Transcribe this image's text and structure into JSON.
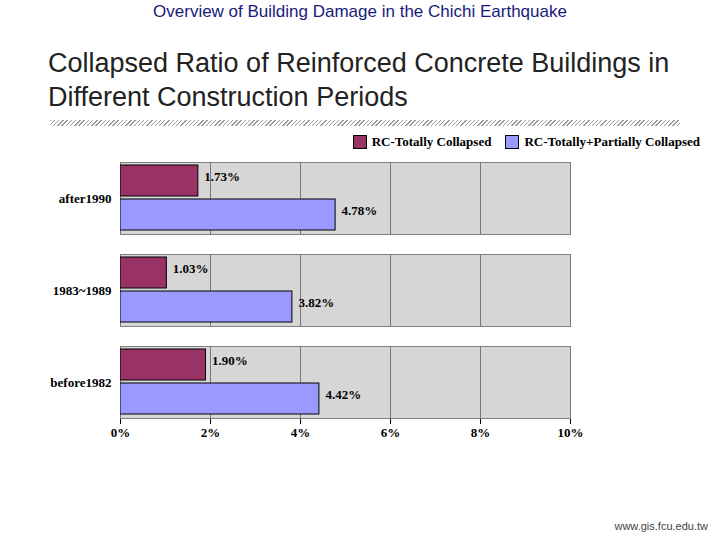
{
  "header": "Overview of Building Damage in the Chichi Earthquake",
  "footer": "www.gis.fcu.edu.tw",
  "chart_data": {
    "type": "bar",
    "orientation": "horizontal",
    "title": "Collapsed Ratio of Reinforced Concrete Buildings in Different Construction Periods",
    "categories": [
      "after1990",
      "1983~1989",
      "before1982"
    ],
    "series": [
      {
        "name": "RC-Totally Collapsed",
        "color": "#993366",
        "values": [
          1.73,
          1.03,
          1.9
        ],
        "value_labels": [
          "1.73%",
          "1.03%",
          "1.90%"
        ]
      },
      {
        "name": "RC-Totally+Partially Collapsed",
        "color": "#9999ff",
        "values": [
          4.78,
          3.82,
          4.42
        ],
        "value_labels": [
          "4.78%",
          "3.82%",
          "4.42%"
        ]
      }
    ],
    "xlim": [
      0,
      10
    ],
    "xticks": [
      {
        "value": 0,
        "label": "0%"
      },
      {
        "value": 2,
        "label": "2%"
      },
      {
        "value": 4,
        "label": "4%"
      },
      {
        "value": 6,
        "label": "6%"
      },
      {
        "value": 8,
        "label": "8%"
      },
      {
        "value": 10,
        "label": "10%"
      }
    ],
    "grid": true,
    "data_labels": true,
    "legend": "top-right"
  }
}
